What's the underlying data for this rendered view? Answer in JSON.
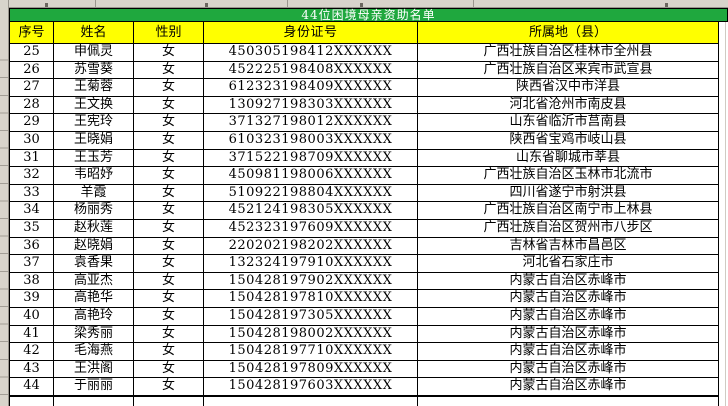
{
  "sheet": {
    "title": "44位困境母亲资助名单",
    "columns": [
      "序号",
      "姓名",
      "性别",
      "身份证号",
      "所属地（县）"
    ],
    "rows": [
      [
        "25",
        "申佩灵",
        "女",
        "450305198412XXXXXX",
        "广西壮族自治区桂林市全州县"
      ],
      [
        "26",
        "苏雪葵",
        "女",
        "452225198408XXXXXX",
        "广西壮族自治区来宾市武宣县"
      ],
      [
        "27",
        "王菊蓉",
        "女",
        "612323198409XXXXXX",
        "陕西省汉中市洋县"
      ],
      [
        "28",
        "王文换",
        "女",
        "130927198303XXXXXX",
        "河北省沧州市南皮县"
      ],
      [
        "29",
        "王宪玲",
        "女",
        "371327198012XXXXXX",
        "山东省临沂市莒南县"
      ],
      [
        "30",
        "王晓娟",
        "女",
        "610323198003XXXXXX",
        "陕西省宝鸡市岐山县"
      ],
      [
        "31",
        "王玉芳",
        "女",
        "371522198709XXXXXX",
        "山东省聊城市莘县"
      ],
      [
        "32",
        "韦昭妤",
        "女",
        "450981198006XXXXXX",
        "广西壮族自治区玉林市北流市"
      ],
      [
        "33",
        "羊霞",
        "女",
        "510922198804XXXXXX",
        "四川省遂宁市射洪县"
      ],
      [
        "34",
        "杨丽秀",
        "女",
        "452124198305XXXXXX",
        "广西壮族自治区南宁市上林县"
      ],
      [
        "35",
        "赵秋莲",
        "女",
        "452323197609XXXXXX",
        "广西壮族自治区贺州市八步区"
      ],
      [
        "36",
        "赵晓娟",
        "女",
        "220202198202XXXXXX",
        "吉林省吉林市昌邑区"
      ],
      [
        "37",
        "袁香果",
        "女",
        "132324197910XXXXXX",
        "河北省石家庄市"
      ],
      [
        "38",
        "高亚杰",
        "女",
        "150428197902XXXXXX",
        "内蒙古自治区赤峰市"
      ],
      [
        "39",
        "高艳华",
        "女",
        "150428197810XXXXXX",
        "内蒙古自治区赤峰市"
      ],
      [
        "40",
        "高艳玲",
        "女",
        "150428197305XXXXXX",
        "内蒙古自治区赤峰市"
      ],
      [
        "41",
        "梁秀丽",
        "女",
        "150428198002XXXXXX",
        "内蒙古自治区赤峰市"
      ],
      [
        "42",
        "毛海燕",
        "女",
        "150428197710XXXXXX",
        "内蒙古自治区赤峰市"
      ],
      [
        "43",
        "王洪阁",
        "女",
        "150428197809XXXXXX",
        "内蒙古自治区赤峰市"
      ],
      [
        "44",
        "于丽丽",
        "女",
        "150428197603XXXXXX",
        "内蒙古自治区赤峰市"
      ]
    ]
  },
  "colors": {
    "title_bg": "#1fa83e",
    "title_text": "#ffffff",
    "header_bg": "#ffff00",
    "header_text": "#000000",
    "grid": "#000000",
    "chrome_bg": "#d8d4cb"
  }
}
